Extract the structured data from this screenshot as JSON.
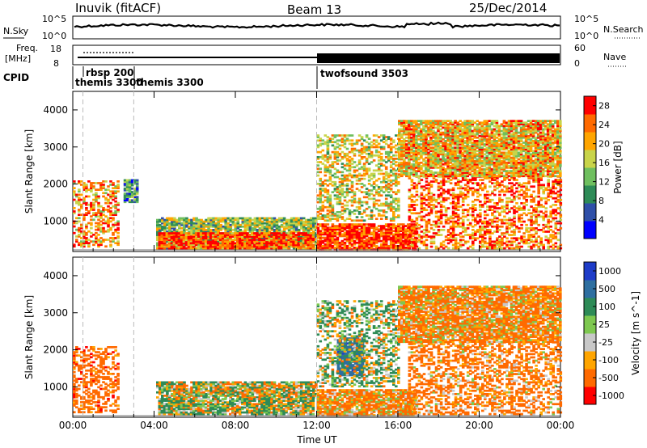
{
  "header": {
    "station": "Inuvik (fitACF)",
    "beam": "Beam 13",
    "date": "25/Dec/2014"
  },
  "top_panels": {
    "nsky_label": "N.Sky",
    "nsearch_label": "N.Search",
    "nsky_ticks": [
      "10^5",
      "10^0"
    ],
    "nsearch_ticks": [
      "10^5",
      "10^0"
    ],
    "freq_label": "Freq.",
    "freq_unit": "[MHz]",
    "freq_ticks": [
      "18",
      "8"
    ],
    "nave_label": "Nave",
    "nave_ticks": [
      "60",
      "0"
    ],
    "cpid_label": "CPID",
    "cpid_entries": [
      {
        "label": "rbsp 200",
        "start_h": 0.5
      },
      {
        "label": "themis 3300",
        "start_h": 0.0
      },
      {
        "label": "themis 3300",
        "start_h": 3.0
      },
      {
        "label": "twofsound 3503",
        "start_h": 12.0
      }
    ]
  },
  "chart_data": [
    {
      "type": "heatmap",
      "title": "",
      "xlabel": "Time UT",
      "ylabel": "Slant Range [km]",
      "x_ticks": [
        "00:00",
        "04:00",
        "08:00",
        "12:00",
        "16:00",
        "20:00",
        "00:00"
      ],
      "xlim_hours": [
        0,
        24
      ],
      "y_ticks": [
        1000,
        2000,
        3000,
        4000
      ],
      "ylim": [
        180,
        4500
      ],
      "colorbar": {
        "label": "Power [dB]",
        "ticks": [
          4,
          8,
          12,
          16,
          20,
          24,
          28
        ],
        "range": [
          0,
          30
        ],
        "colors": [
          "#0000ff",
          "#2f4fa8",
          "#2e8b57",
          "#6fbf5f",
          "#c8d44a",
          "#ffa500",
          "#ff6a00",
          "#ff0000"
        ]
      },
      "regions": [
        {
          "t0": 0.0,
          "t1": 2.2,
          "r0": 300,
          "r1": 2100,
          "level": 22
        },
        {
          "t0": 2.5,
          "t1": 3.2,
          "r0": 1500,
          "r1": 2100,
          "level": 10
        },
        {
          "t0": 4.1,
          "t1": 11.9,
          "r0": 250,
          "r1": 1100,
          "level": 14
        },
        {
          "t0": 4.2,
          "t1": 11.8,
          "r0": 250,
          "r1": 700,
          "level": 26
        },
        {
          "t0": 12.0,
          "t1": 16.8,
          "r0": 220,
          "r1": 900,
          "level": 27
        },
        {
          "t0": 12.0,
          "t1": 16.0,
          "r0": 1000,
          "r1": 3300,
          "level": 18
        },
        {
          "t0": 16.5,
          "t1": 24.0,
          "r0": 250,
          "r1": 2200,
          "level": 24
        },
        {
          "t0": 16.0,
          "t1": 24.0,
          "r0": 2200,
          "r1": 3700,
          "level": 20
        }
      ]
    },
    {
      "type": "heatmap",
      "title": "",
      "xlabel": "Time UT",
      "ylabel": "Slant Range [km]",
      "x_ticks": [
        "00:00",
        "04:00",
        "08:00",
        "12:00",
        "16:00",
        "20:00",
        "00:00"
      ],
      "xlim_hours": [
        0,
        24
      ],
      "y_ticks": [
        1000,
        2000,
        3000,
        4000
      ],
      "ylim": [
        180,
        4500
      ],
      "colorbar": {
        "label": "Velocity [m s^-1]",
        "ticks": [
          "1000",
          "500",
          "100",
          "25",
          "-25",
          "-100",
          "-500",
          "-1000"
        ],
        "colors": [
          "#1e3cc8",
          "#2e6fa0",
          "#2e8b57",
          "#7ec850",
          "#c8c8c8",
          "#ffa500",
          "#ff6a00",
          "#ff0000"
        ]
      },
      "regions": [
        {
          "t0": 0.0,
          "t1": 2.2,
          "r0": 300,
          "r1": 2100,
          "level": -300
        },
        {
          "t0": 4.1,
          "t1": 11.9,
          "r0": 700,
          "r1": 1150,
          "level": 0
        },
        {
          "t0": 4.2,
          "t1": 11.8,
          "r0": 250,
          "r1": 700,
          "level": 60
        },
        {
          "t0": 12.0,
          "t1": 16.8,
          "r0": 220,
          "r1": 900,
          "level": -150
        },
        {
          "t0": 13.0,
          "t1": 14.2,
          "r0": 1300,
          "r1": 2300,
          "level": 800
        },
        {
          "t0": 12.0,
          "t1": 16.0,
          "r0": 1000,
          "r1": 3300,
          "level": 80
        },
        {
          "t0": 16.5,
          "t1": 24.0,
          "r0": 250,
          "r1": 2200,
          "level": -200
        },
        {
          "t0": 16.0,
          "t1": 24.0,
          "r0": 2200,
          "r1": 3700,
          "level": -150
        }
      ]
    }
  ]
}
